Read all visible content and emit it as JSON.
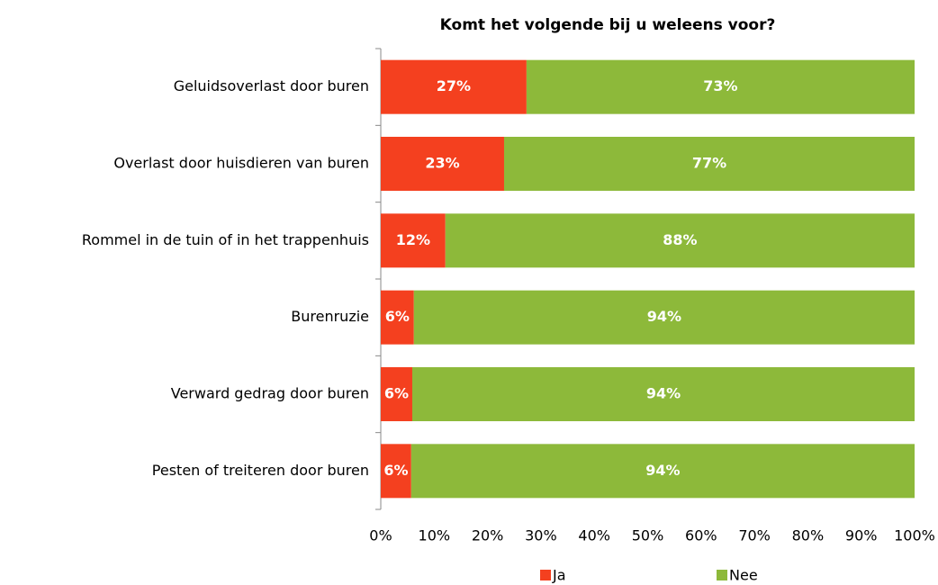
{
  "chart_data": {
    "type": "stacked_bar_horizontal",
    "title": "Komt het volgende bij u weleens voor?",
    "categories": [
      "Geluidsoverlast door buren",
      "Overlast door huisdieren van buren",
      "Rommel in de tuin of in het trappenhuis",
      "Burenruzie",
      "Verward gedrag door buren",
      "Pesten of treiteren door buren"
    ],
    "series": [
      {
        "name": "Ja",
        "color": "#f4401f",
        "values": [
          27.3,
          23.1,
          12.1,
          6.2,
          5.9,
          5.7
        ],
        "value_labels": [
          "27%",
          "23%",
          "12%",
          "6%",
          "6%",
          "6%"
        ]
      },
      {
        "name": "Nee",
        "color": "#8db93a",
        "values": [
          72.7,
          76.9,
          87.9,
          93.8,
          94.1,
          94.3
        ],
        "value_labels": [
          "73%",
          "77%",
          "88%",
          "94%",
          "94%",
          "94%"
        ]
      }
    ],
    "xlim": [
      0,
      100
    ],
    "xticks": [
      {
        "value": 0,
        "label": "0%"
      },
      {
        "value": 10,
        "label": "10%"
      },
      {
        "value": 20,
        "label": "20%"
      },
      {
        "value": 30,
        "label": "30%"
      },
      {
        "value": 40,
        "label": "40%"
      },
      {
        "value": 50,
        "label": "50%"
      },
      {
        "value": 60,
        "label": "60%"
      },
      {
        "value": 70,
        "label": "70%"
      },
      {
        "value": 80,
        "label": "80%"
      },
      {
        "value": 90,
        "label": "90%"
      },
      {
        "value": 100,
        "label": "100%"
      }
    ],
    "grid": false,
    "legend": "bottom"
  }
}
